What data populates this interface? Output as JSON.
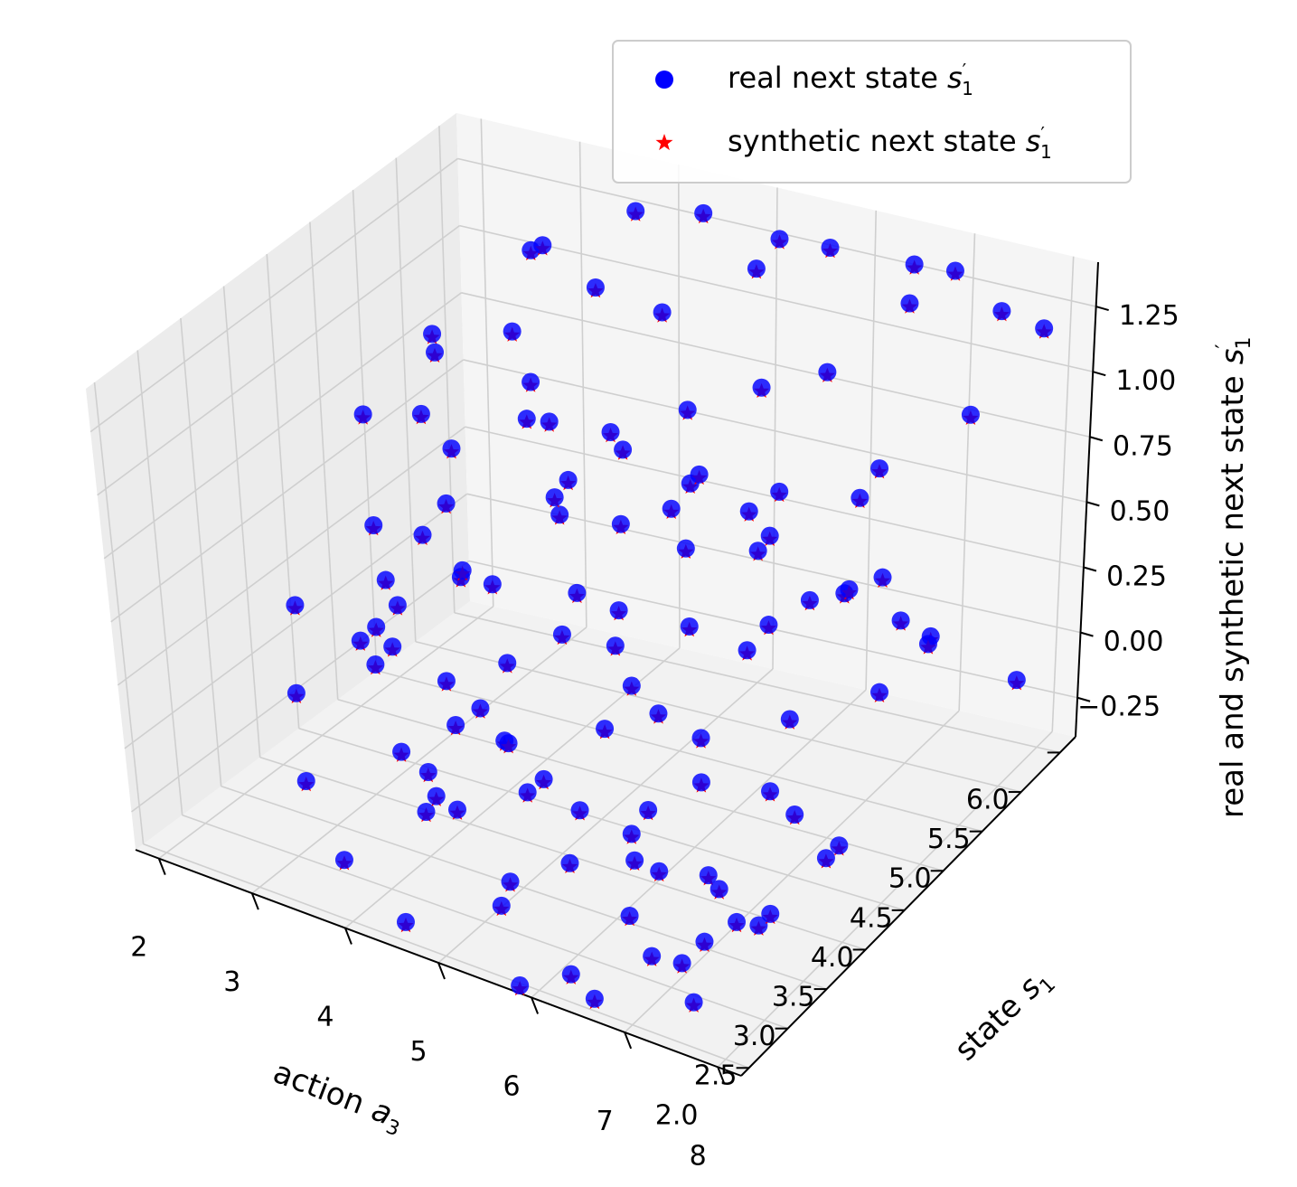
{
  "chart_data": {
    "type": "scatter",
    "projection": "3d",
    "title": "",
    "xlabel": "action",
    "xlabel_sub": "3",
    "ylabel": "state",
    "ylabel_sub": "1",
    "zlabel": "real and synthetic next state",
    "zlabel_sub": "1",
    "xlim": [
      1.75,
      8.25
    ],
    "ylim": [
      1.9,
      6.2
    ],
    "zlim": [
      -0.4,
      1.42
    ],
    "xticks": [
      "2",
      "3",
      "4",
      "5",
      "6",
      "7",
      "8"
    ],
    "yticks": [
      "2.0",
      "2.5",
      "3.0",
      "3.5",
      "4.0",
      "4.5",
      "5.0",
      "5.5",
      "6.0"
    ],
    "zticks": [
      "−0.25",
      "0.00",
      "0.25",
      "0.50",
      "0.75",
      "1.00",
      "1.25"
    ],
    "grid": true,
    "legend_position": "top-right",
    "series": [
      {
        "name": "real next state",
        "name_sub": "1",
        "marker": "circle",
        "color": "#0000ff"
      },
      {
        "name": "synthetic next state",
        "name_sub": "1",
        "marker": "star",
        "color": "#ff0000"
      }
    ],
    "points": [
      [
        2.1,
        4.6,
        0.7
      ],
      [
        2.3,
        4.2,
        -0.05
      ],
      [
        2.7,
        4.8,
        0.95
      ],
      [
        2.8,
        4.5,
        0.8
      ],
      [
        2.9,
        4.0,
        0.2
      ],
      [
        3.0,
        3.8,
        0.1
      ],
      [
        3.2,
        4.3,
        0.55
      ],
      [
        3.3,
        3.5,
        -0.2
      ],
      [
        3.5,
        4.1,
        0.35
      ],
      [
        3.6,
        4.7,
        1.15
      ],
      [
        3.7,
        3.9,
        0.45
      ],
      [
        3.8,
        3.2,
        -0.3
      ],
      [
        3.9,
        4.5,
        0.9
      ],
      [
        4.0,
        3.7,
        0.0
      ],
      [
        4.1,
        3.0,
        -0.15
      ],
      [
        4.2,
        5.0,
        1.3
      ],
      [
        4.3,
        4.4,
        0.6
      ],
      [
        4.4,
        3.6,
        0.25
      ],
      [
        4.5,
        2.8,
        -0.1
      ],
      [
        4.6,
        3.3,
        0.05
      ],
      [
        4.7,
        5.2,
        1.2
      ],
      [
        4.8,
        4.6,
        0.85
      ],
      [
        4.9,
        3.9,
        0.5
      ],
      [
        5.0,
        3.1,
        -0.05
      ],
      [
        5.1,
        2.6,
        -0.35
      ],
      [
        5.2,
        4.0,
        0.3
      ],
      [
        5.3,
        4.8,
        1.0
      ],
      [
        5.4,
        5.5,
        1.35
      ],
      [
        5.5,
        3.5,
        0.15
      ],
      [
        5.6,
        2.9,
        -0.2
      ],
      [
        5.7,
        4.3,
        0.65
      ],
      [
        5.8,
        5.1,
        1.05
      ],
      [
        5.9,
        3.7,
        0.2
      ],
      [
        6.0,
        2.4,
        -0.45
      ],
      [
        6.1,
        4.6,
        0.75
      ],
      [
        6.2,
        3.2,
        0.0
      ],
      [
        6.3,
        5.3,
        1.1
      ],
      [
        6.4,
        2.7,
        -0.25
      ],
      [
        6.5,
        4.1,
        0.4
      ],
      [
        6.6,
        3.4,
        0.1
      ],
      [
        6.7,
        5.8,
        1.25
      ],
      [
        6.8,
        2.5,
        -0.3
      ],
      [
        6.9,
        4.4,
        0.55
      ],
      [
        7.0,
        3.0,
        -0.1
      ],
      [
        7.1,
        5.0,
        0.9
      ],
      [
        7.2,
        3.8,
        0.3
      ],
      [
        7.3,
        2.3,
        -0.2
      ],
      [
        7.4,
        4.7,
        0.6
      ],
      [
        7.5,
        3.5,
        0.05
      ],
      [
        7.6,
        5.5,
        1.0
      ],
      [
        7.7,
        2.8,
        -0.15
      ],
      [
        7.8,
        4.2,
        0.35
      ],
      [
        7.9,
        6.0,
        1.2
      ],
      [
        8.0,
        3.3,
        0.0
      ],
      [
        3.4,
        5.3,
        1.3
      ],
      [
        4.6,
        5.8,
        1.4
      ],
      [
        5.8,
        5.9,
        1.35
      ],
      [
        6.9,
        6.1,
        1.3
      ],
      [
        2.5,
        5.0,
        0.95
      ],
      [
        3.1,
        5.5,
        1.2
      ],
      [
        4.0,
        5.7,
        1.38
      ],
      [
        5.2,
        6.0,
        1.3
      ],
      [
        6.4,
        6.2,
        1.25
      ],
      [
        7.3,
        6.2,
        1.15
      ],
      [
        2.2,
        3.5,
        -0.1
      ],
      [
        2.6,
        3.1,
        -0.3
      ],
      [
        3.5,
        2.5,
        -0.35
      ],
      [
        4.4,
        2.2,
        -0.4
      ],
      [
        5.7,
        2.1,
        -0.45
      ],
      [
        6.6,
        2.0,
        -0.35
      ],
      [
        7.5,
        2.2,
        -0.3
      ],
      [
        3.2,
        3.4,
        0.3
      ],
      [
        4.1,
        3.2,
        0.25
      ],
      [
        5.0,
        2.9,
        0.2
      ],
      [
        6.0,
        2.6,
        0.15
      ],
      [
        7.0,
        2.4,
        0.1
      ],
      [
        7.9,
        2.3,
        0.05
      ],
      [
        2.4,
        4.9,
        0.2
      ],
      [
        3.3,
        4.7,
        0.15
      ],
      [
        4.2,
        4.5,
        0.1
      ],
      [
        5.1,
        4.3,
        0.05
      ],
      [
        6.0,
        4.1,
        0.0
      ],
      [
        6.9,
        3.9,
        -0.05
      ],
      [
        7.8,
        3.7,
        -0.1
      ],
      [
        2.8,
        5.8,
        0.6
      ],
      [
        3.8,
        5.6,
        0.55
      ],
      [
        4.8,
        5.4,
        0.5
      ],
      [
        5.8,
        5.2,
        0.45
      ],
      [
        6.8,
        5.0,
        0.4
      ],
      [
        7.8,
        4.8,
        0.35
      ],
      [
        3.0,
        6.0,
        0.2
      ],
      [
        4.0,
        6.1,
        0.15
      ],
      [
        5.0,
        6.0,
        0.1
      ],
      [
        6.0,
        5.9,
        0.05
      ],
      [
        7.0,
        5.8,
        0.0
      ],
      [
        8.0,
        5.7,
        -0.05
      ],
      [
        2.9,
        2.8,
        0.5
      ],
      [
        3.9,
        2.6,
        0.45
      ],
      [
        4.9,
        2.4,
        0.4
      ],
      [
        5.9,
        2.3,
        0.35
      ],
      [
        6.9,
        2.2,
        0.3
      ],
      [
        7.9,
        2.1,
        0.25
      ],
      [
        2.3,
        5.4,
        0.4
      ],
      [
        3.6,
        5.1,
        0.7
      ],
      [
        4.5,
        4.9,
        0.45
      ],
      [
        5.5,
        4.7,
        0.8
      ],
      [
        6.5,
        4.5,
        0.9
      ],
      [
        7.5,
        4.3,
        1.05
      ],
      [
        8.1,
        4.1,
        0.7
      ],
      [
        3.7,
        3.0,
        0.65
      ],
      [
        4.7,
        3.9,
        0.85
      ],
      [
        5.6,
        3.6,
        0.6
      ],
      [
        6.6,
        3.3,
        0.75
      ],
      [
        7.6,
        3.1,
        0.95
      ],
      [
        2.6,
        4.1,
        0.45
      ],
      [
        4.3,
        2.7,
        0.05
      ],
      [
        5.3,
        2.5,
        -0.2
      ],
      [
        6.3,
        2.9,
        -0.1
      ],
      [
        7.2,
        2.7,
        -0.25
      ],
      [
        8.0,
        2.6,
        0.0
      ]
    ]
  }
}
